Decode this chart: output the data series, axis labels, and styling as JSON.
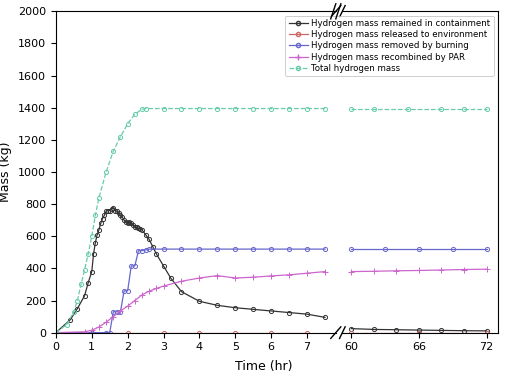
{
  "xlabel": "Time (hr)",
  "ylabel": "Mass (kg)",
  "ylim": [
    0,
    2000
  ],
  "yticks": [
    0,
    200,
    400,
    600,
    800,
    1000,
    1200,
    1400,
    1600,
    1800,
    2000
  ],
  "xticks_left": [
    0,
    1,
    2,
    3,
    4,
    5,
    6,
    7
  ],
  "xticks_right": [
    60,
    66,
    72
  ],
  "series": {
    "remained": {
      "label": "Hydrogen mass remained in containment",
      "color": "#333333",
      "linestyle": "-",
      "marker": "o",
      "markersize": 3,
      "linewidth": 0.9
    },
    "released": {
      "label": "Hydrogen mass released to environment",
      "color": "#cc6666",
      "linestyle": "-",
      "marker": "o",
      "markersize": 3,
      "linewidth": 0.9
    },
    "burning": {
      "label": "Hydrogen mass removed by burning",
      "color": "#6666cc",
      "linestyle": "-",
      "marker": "o",
      "markersize": 3,
      "linewidth": 0.9
    },
    "PAR": {
      "label": "Hydrogen mass recombined by PAR",
      "color": "#cc66cc",
      "linestyle": "-",
      "marker": "+",
      "markersize": 4,
      "linewidth": 0.9
    },
    "total": {
      "label": "Total hydrogen mass",
      "color": "#66ccaa",
      "linestyle": "--",
      "marker": "o",
      "markersize": 3,
      "linewidth": 0.9
    }
  },
  "remained_t": [
    0,
    0.4,
    0.6,
    0.8,
    0.9,
    1.0,
    1.05,
    1.1,
    1.15,
    1.2,
    1.25,
    1.3,
    1.35,
    1.4,
    1.45,
    1.5,
    1.55,
    1.6,
    1.65,
    1.7,
    1.75,
    1.8,
    1.85,
    1.9,
    1.95,
    2.0,
    2.05,
    2.1,
    2.15,
    2.2,
    2.25,
    2.3,
    2.35,
    2.4,
    2.5,
    2.6,
    2.7,
    2.8,
    3.0,
    3.2,
    3.5,
    4.0,
    4.5,
    5.0,
    5.5,
    6.0,
    6.5,
    7.0,
    7.5,
    60,
    62,
    64,
    66,
    68,
    70,
    72
  ],
  "remained_v": [
    0,
    80,
    150,
    230,
    310,
    380,
    490,
    560,
    610,
    640,
    680,
    710,
    730,
    755,
    760,
    760,
    770,
    775,
    760,
    755,
    745,
    730,
    720,
    700,
    690,
    680,
    690,
    680,
    670,
    660,
    655,
    650,
    645,
    640,
    610,
    580,
    535,
    490,
    415,
    340,
    255,
    195,
    170,
    155,
    145,
    135,
    125,
    115,
    95,
    25,
    20,
    18,
    16,
    14,
    12,
    11
  ],
  "released_t": [
    0,
    1.0,
    2.0,
    3.0,
    4.0,
    5.0,
    6.0,
    7.0,
    60,
    66,
    72
  ],
  "released_v": [
    0,
    0,
    0,
    0,
    0,
    0,
    0,
    0,
    0,
    0,
    0
  ],
  "burning_t": [
    0,
    1.0,
    1.4,
    1.5,
    1.6,
    1.7,
    1.8,
    1.9,
    2.0,
    2.1,
    2.2,
    2.3,
    2.4,
    2.5,
    2.6,
    3.0,
    3.5,
    4.0,
    4.5,
    5.0,
    5.5,
    6.0,
    6.5,
    7.0,
    7.5,
    60,
    63,
    66,
    69,
    72
  ],
  "burning_v": [
    0,
    0,
    0,
    0,
    130,
    130,
    130,
    260,
    260,
    415,
    415,
    510,
    510,
    515,
    520,
    520,
    520,
    520,
    520,
    520,
    520,
    520,
    520,
    520,
    520,
    520,
    520,
    520,
    520,
    520
  ],
  "PAR_t": [
    0,
    0.8,
    1.0,
    1.2,
    1.4,
    1.6,
    1.8,
    2.0,
    2.2,
    2.4,
    2.6,
    2.8,
    3.0,
    3.5,
    4.0,
    4.5,
    5.0,
    5.5,
    6.0,
    6.5,
    7.0,
    7.5,
    60,
    62,
    64,
    66,
    68,
    70,
    72
  ],
  "PAR_v": [
    0,
    5,
    15,
    35,
    65,
    100,
    135,
    165,
    200,
    235,
    258,
    275,
    290,
    320,
    340,
    355,
    340,
    345,
    353,
    360,
    370,
    380,
    380,
    382,
    385,
    387,
    390,
    393,
    395
  ],
  "total_t": [
    0,
    0.3,
    0.5,
    0.6,
    0.7,
    0.8,
    0.9,
    1.0,
    1.1,
    1.2,
    1.4,
    1.6,
    1.8,
    2.0,
    2.2,
    2.4,
    2.5,
    3.0,
    3.5,
    4.0,
    4.5,
    5.0,
    5.5,
    6.0,
    6.5,
    7.0,
    7.5,
    60,
    62,
    65,
    68,
    70,
    72
  ],
  "total_v": [
    0,
    50,
    130,
    200,
    300,
    390,
    490,
    600,
    730,
    840,
    1000,
    1130,
    1220,
    1300,
    1360,
    1390,
    1395,
    1395,
    1395,
    1395,
    1395,
    1395,
    1395,
    1395,
    1395,
    1395,
    1395,
    1390,
    1390,
    1390,
    1390,
    1390,
    1390
  ]
}
